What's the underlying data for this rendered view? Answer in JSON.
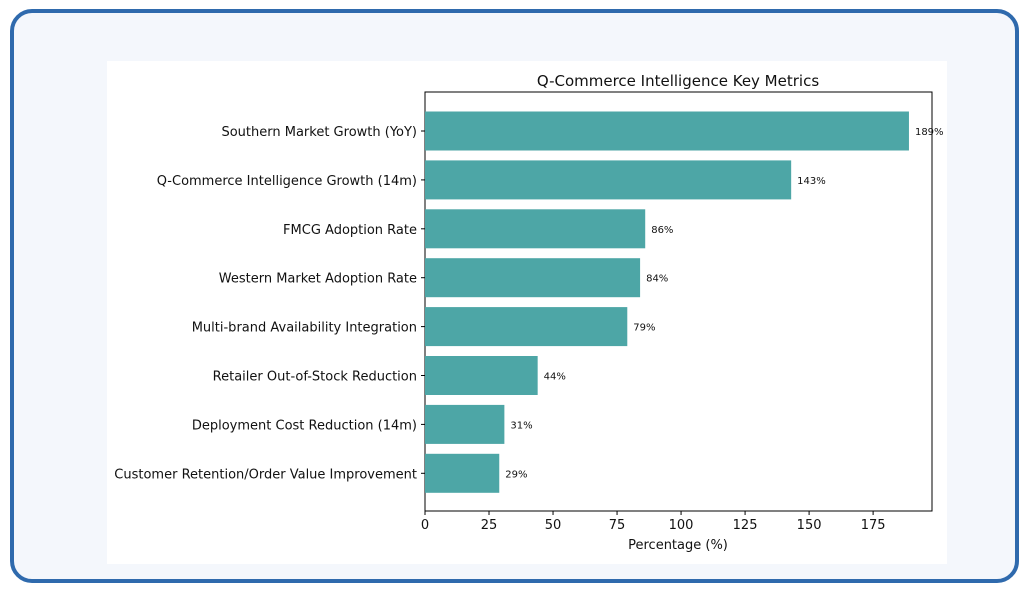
{
  "chart_data": {
    "type": "bar",
    "orientation": "horizontal",
    "title": "Q-Commerce Intelligence Key Metrics",
    "xlabel": "Percentage (%)",
    "ylabel": "",
    "categories": [
      "Southern Market Growth (YoY)",
      "Q-Commerce Intelligence Growth (14m)",
      "FMCG Adoption Rate",
      "Western Market Adoption Rate",
      "Multi-brand Availability Integration",
      "Retailer Out-of-Stock Reduction",
      "Deployment Cost Reduction (14m)",
      "Customer Retention/Order Value Improvement"
    ],
    "values": [
      189,
      143,
      86,
      84,
      79,
      44,
      31,
      29
    ],
    "value_labels": [
      "189%",
      "143%",
      "86%",
      "84%",
      "79%",
      "44%",
      "31%",
      "29%"
    ],
    "xticks": [
      0,
      25,
      50,
      75,
      100,
      125,
      150,
      175
    ],
    "xticklabels": [
      "0",
      "25",
      "50",
      "75",
      "100",
      "125",
      "150",
      "175"
    ],
    "xlim": [
      0,
      198
    ],
    "grid": false,
    "bar_color": "#4da6a6"
  }
}
